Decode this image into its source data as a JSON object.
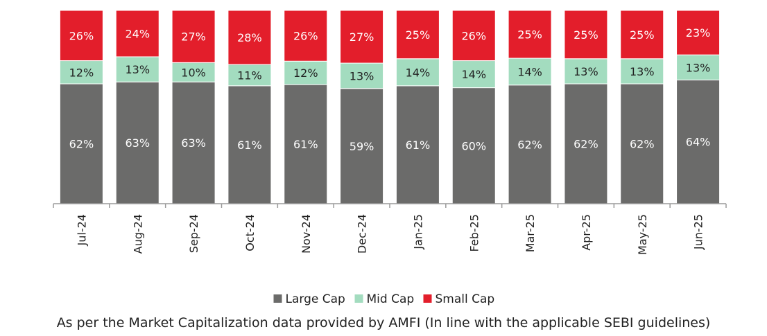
{
  "chart_data": {
    "type": "bar",
    "stacked": true,
    "normalized_percent": true,
    "categories": [
      "Jul-24",
      "Aug-24",
      "Sep-24",
      "Oct-24",
      "Nov-24",
      "Dec-24",
      "Jan-25",
      "Feb-25",
      "Mar-25",
      "Apr-25",
      "May-25",
      "Jun-25"
    ],
    "series": [
      {
        "name": "Large Cap",
        "color": "#6b6b6a",
        "values": [
          62,
          63,
          63,
          61,
          61,
          59,
          61,
          60,
          62,
          62,
          62,
          64
        ],
        "labels": [
          "62%",
          "63%",
          "63%",
          "61%",
          "61%",
          "59%",
          "61%",
          "60%",
          "62%",
          "62%",
          "62%",
          "64%"
        ]
      },
      {
        "name": "Mid Cap",
        "color": "#a3dcbf",
        "values": [
          12,
          13,
          10,
          11,
          12,
          13,
          14,
          14,
          14,
          13,
          13,
          13
        ],
        "labels": [
          "12%",
          "13%",
          "10%",
          "11%",
          "12%",
          "13%",
          "14%",
          "14%",
          "14%",
          "13%",
          "13%",
          "13%"
        ]
      },
      {
        "name": "Small Cap",
        "color": "#e31e2b",
        "values": [
          26,
          24,
          27,
          28,
          26,
          27,
          25,
          26,
          25,
          25,
          25,
          23
        ],
        "labels": [
          "26%",
          "24%",
          "27%",
          "28%",
          "26%",
          "27%",
          "25%",
          "26%",
          "25%",
          "25%",
          "25%",
          "23%"
        ]
      }
    ],
    "legend_position": "bottom",
    "grid": false
  },
  "footnote": "As per the Market Capitalization data provided by AMFI (In line with the applicable SEBI guidelines)"
}
